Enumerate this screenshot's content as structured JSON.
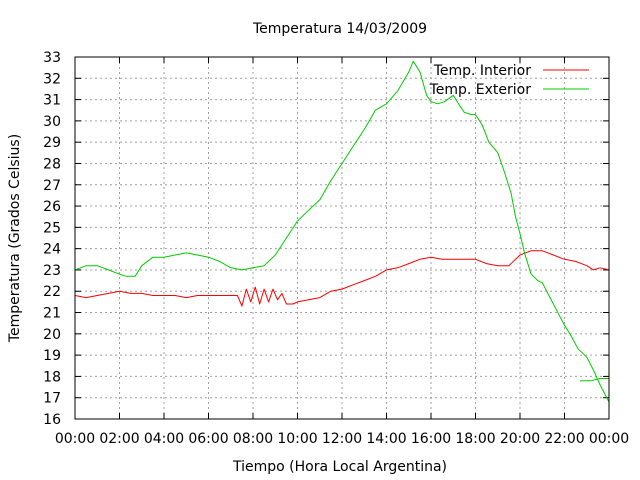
{
  "chart_data": {
    "type": "line",
    "title": "Temperatura 14/03/2009",
    "xlabel": "Tiempo (Hora Local Argentina)",
    "ylabel": "Temperatura (Grados Celsius)",
    "xlim": [
      0,
      24
    ],
    "ylim": [
      16,
      33
    ],
    "x_tick_labels": [
      "00:00",
      "02:00",
      "04:00",
      "06:00",
      "08:00",
      "10:00",
      "12:00",
      "14:00",
      "16:00",
      "18:00",
      "20:00",
      "22:00",
      "00:00"
    ],
    "y_tick_labels": [
      "16",
      "17",
      "18",
      "19",
      "20",
      "21",
      "22",
      "23",
      "24",
      "25",
      "26",
      "27",
      "28",
      "29",
      "30",
      "31",
      "32",
      "33"
    ],
    "grid": true,
    "legend_position": "top-right",
    "series": [
      {
        "name": "Temp. Interior",
        "color": "#ff0000",
        "x": [
          0,
          0.5,
          1,
          1.5,
          2,
          2.5,
          3,
          3.5,
          4,
          4.5,
          5,
          5.5,
          6,
          6.5,
          7,
          7.3,
          7.5,
          7.7,
          7.9,
          8.1,
          8.3,
          8.5,
          8.7,
          8.9,
          9.1,
          9.3,
          9.5,
          9.8,
          10,
          10.5,
          11,
          11.5,
          12,
          12.5,
          13,
          13.5,
          14,
          14.5,
          15,
          15.5,
          16,
          16.5,
          17,
          17.5,
          18,
          18.5,
          19,
          19.5,
          20,
          20.5,
          21,
          21.5,
          22,
          22.5,
          23,
          23.3,
          23.6,
          24
        ],
        "y": [
          21.8,
          21.7,
          21.8,
          21.9,
          22.0,
          21.9,
          21.9,
          21.8,
          21.8,
          21.8,
          21.7,
          21.8,
          21.8,
          21.8,
          21.8,
          21.8,
          21.3,
          22.1,
          21.5,
          22.2,
          21.4,
          22.1,
          21.5,
          22.1,
          21.6,
          21.9,
          21.4,
          21.4,
          21.5,
          21.6,
          21.7,
          22.0,
          22.1,
          22.3,
          22.5,
          22.7,
          23.0,
          23.1,
          23.3,
          23.5,
          23.6,
          23.5,
          23.5,
          23.5,
          23.5,
          23.3,
          23.2,
          23.2,
          23.7,
          23.9,
          23.9,
          23.7,
          23.5,
          23.4,
          23.2,
          23.0,
          23.1,
          23.0
        ]
      },
      {
        "name": "Temp. Exterior",
        "color": "#00cc00",
        "x": [
          0,
          0.5,
          1,
          1.5,
          2,
          2.3,
          2.7,
          3,
          3.5,
          4,
          4.5,
          5,
          5.5,
          6,
          6.5,
          7,
          7.5,
          8,
          8.5,
          9,
          9.5,
          10,
          10.5,
          11,
          11.5,
          12,
          12.5,
          13,
          13.5,
          14,
          14.5,
          15,
          15.2,
          15.5,
          15.8,
          16,
          16.3,
          16.6,
          17,
          17.3,
          17.5,
          17.8,
          18,
          18.3,
          18.6,
          19,
          19.3,
          19.6,
          19.8,
          20,
          20.2,
          20.5,
          20.8,
          21,
          21.3,
          21.6,
          22,
          22.3,
          22.6,
          23,
          23.3,
          23.6,
          24
        ],
        "y": [
          23.0,
          23.2,
          23.2,
          23.0,
          22.8,
          22.7,
          22.7,
          23.2,
          23.6,
          23.6,
          23.7,
          23.8,
          23.7,
          23.6,
          23.4,
          23.1,
          23.0,
          23.1,
          23.2,
          23.7,
          24.5,
          25.3,
          25.8,
          26.3,
          27.2,
          28.0,
          28.8,
          29.6,
          30.5,
          30.8,
          31.4,
          32.3,
          32.8,
          32.3,
          31.2,
          30.9,
          30.8,
          30.9,
          31.2,
          30.7,
          30.4,
          30.3,
          30.3,
          29.8,
          29.0,
          28.5,
          27.6,
          26.6,
          25.5,
          24.7,
          23.8,
          22.8,
          22.5,
          22.4,
          21.8,
          21.2,
          20.4,
          19.9,
          19.3,
          18.9,
          18.3,
          17.6,
          16.8
        ]
      },
      {
        "color": "#00cc00",
        "x": [
          22.7,
          23.2,
          23.6,
          23.9,
          24
        ],
        "y": [
          17.8,
          17.8,
          17.9,
          17.9,
          17.9
        ]
      }
    ]
  }
}
